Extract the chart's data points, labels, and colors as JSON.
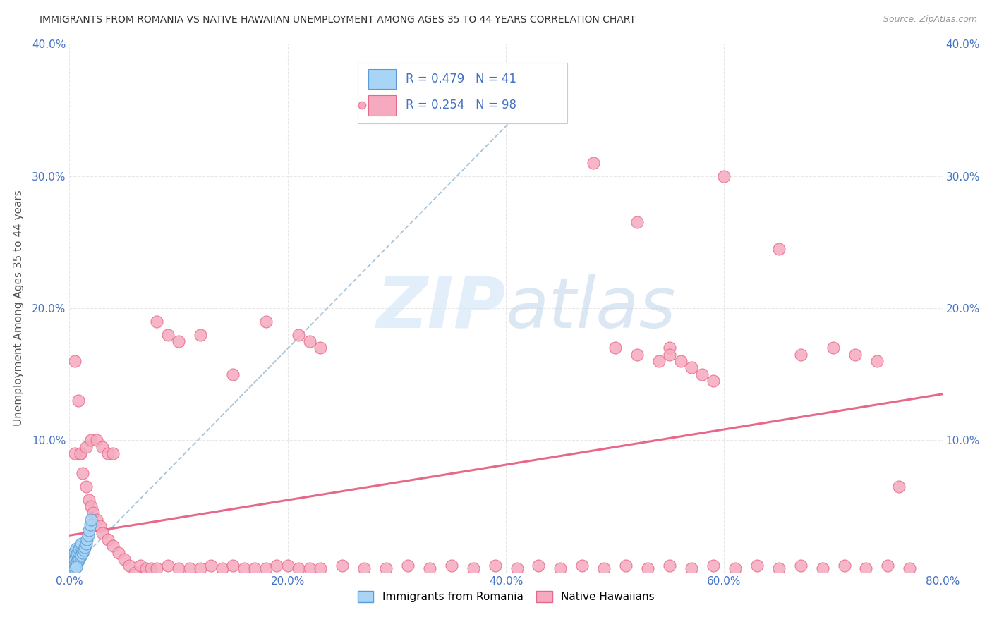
{
  "title": "IMMIGRANTS FROM ROMANIA VS NATIVE HAWAIIAN UNEMPLOYMENT AMONG AGES 35 TO 44 YEARS CORRELATION CHART",
  "source": "Source: ZipAtlas.com",
  "ylabel": "Unemployment Among Ages 35 to 44 years",
  "xlim": [
    0.0,
    0.8
  ],
  "ylim": [
    0.0,
    0.4
  ],
  "xticks": [
    0.0,
    0.2,
    0.4,
    0.6,
    0.8
  ],
  "yticks": [
    0.0,
    0.1,
    0.2,
    0.3,
    0.4
  ],
  "xtick_labels": [
    "0.0%",
    "20.0%",
    "40.0%",
    "60.0%",
    "80.0%"
  ],
  "ytick_labels": [
    "",
    "10.0%",
    "20.0%",
    "30.0%",
    "40.0%"
  ],
  "right_ytick_labels": [
    "",
    "10.0%",
    "20.0%",
    "30.0%",
    "40.0%"
  ],
  "legend_R1": "0.479",
  "legend_N1": "41",
  "legend_R2": "0.254",
  "legend_N2": "98",
  "series1_face": "#A8D4F5",
  "series1_edge": "#5B9BD5",
  "series2_face": "#F5AABF",
  "series2_edge": "#E8688A",
  "trend1_color": "#9BBDD6",
  "trend2_color": "#E8688A",
  "tick_color": "#4472C4",
  "watermark_color": "#D0E4F5",
  "background_color": "#FFFFFF",
  "grid_color": "#E8E8E8",
  "ylabel_color": "#555555",
  "title_color": "#333333",
  "source_color": "#999999",
  "legend_edge_color": "#CCCCCC",
  "series1_x": [
    0.001,
    0.001,
    0.002,
    0.002,
    0.002,
    0.003,
    0.003,
    0.003,
    0.004,
    0.004,
    0.004,
    0.005,
    0.005,
    0.005,
    0.006,
    0.006,
    0.006,
    0.007,
    0.007,
    0.008,
    0.008,
    0.009,
    0.009,
    0.01,
    0.01,
    0.011,
    0.011,
    0.012,
    0.013,
    0.014,
    0.015,
    0.016,
    0.017,
    0.018,
    0.019,
    0.02,
    0.002,
    0.003,
    0.004,
    0.005,
    0.006
  ],
  "series1_y": [
    0.005,
    0.008,
    0.003,
    0.007,
    0.01,
    0.004,
    0.008,
    0.012,
    0.005,
    0.009,
    0.015,
    0.006,
    0.01,
    0.016,
    0.007,
    0.012,
    0.018,
    0.008,
    0.014,
    0.009,
    0.016,
    0.01,
    0.018,
    0.012,
    0.02,
    0.013,
    0.022,
    0.015,
    0.017,
    0.019,
    0.022,
    0.025,
    0.028,
    0.032,
    0.036,
    0.04,
    0.0,
    0.001,
    0.002,
    0.003,
    0.004
  ],
  "series2_x": [
    0.005,
    0.008,
    0.01,
    0.012,
    0.015,
    0.018,
    0.02,
    0.022,
    0.025,
    0.028,
    0.03,
    0.035,
    0.04,
    0.045,
    0.05,
    0.055,
    0.06,
    0.065,
    0.07,
    0.075,
    0.08,
    0.09,
    0.1,
    0.11,
    0.12,
    0.13,
    0.14,
    0.15,
    0.16,
    0.17,
    0.18,
    0.19,
    0.2,
    0.21,
    0.22,
    0.23,
    0.25,
    0.27,
    0.29,
    0.31,
    0.33,
    0.35,
    0.37,
    0.39,
    0.41,
    0.43,
    0.45,
    0.47,
    0.49,
    0.51,
    0.53,
    0.55,
    0.57,
    0.59,
    0.61,
    0.63,
    0.65,
    0.67,
    0.69,
    0.71,
    0.73,
    0.75,
    0.77,
    0.005,
    0.01,
    0.015,
    0.02,
    0.025,
    0.03,
    0.035,
    0.04,
    0.08,
    0.09,
    0.1,
    0.12,
    0.15,
    0.18,
    0.48,
    0.52,
    0.55,
    0.6,
    0.65,
    0.67,
    0.7,
    0.72,
    0.74,
    0.76,
    0.21,
    0.22,
    0.23,
    0.5,
    0.52,
    0.54,
    0.55,
    0.56,
    0.57,
    0.58,
    0.59
  ],
  "series2_y": [
    0.16,
    0.13,
    0.09,
    0.075,
    0.065,
    0.055,
    0.05,
    0.045,
    0.04,
    0.035,
    0.03,
    0.025,
    0.02,
    0.015,
    0.01,
    0.005,
    0.0,
    0.005,
    0.003,
    0.003,
    0.003,
    0.005,
    0.003,
    0.003,
    0.003,
    0.005,
    0.003,
    0.005,
    0.003,
    0.003,
    0.003,
    0.005,
    0.005,
    0.003,
    0.003,
    0.003,
    0.005,
    0.003,
    0.003,
    0.005,
    0.003,
    0.005,
    0.003,
    0.005,
    0.003,
    0.005,
    0.003,
    0.005,
    0.003,
    0.005,
    0.003,
    0.005,
    0.003,
    0.005,
    0.003,
    0.005,
    0.003,
    0.005,
    0.003,
    0.005,
    0.003,
    0.005,
    0.003,
    0.09,
    0.09,
    0.095,
    0.1,
    0.1,
    0.095,
    0.09,
    0.09,
    0.19,
    0.18,
    0.175,
    0.18,
    0.15,
    0.19,
    0.31,
    0.265,
    0.17,
    0.3,
    0.245,
    0.165,
    0.17,
    0.165,
    0.16,
    0.065,
    0.18,
    0.175,
    0.17,
    0.17,
    0.165,
    0.16,
    0.165,
    0.16,
    0.155,
    0.15,
    0.145
  ],
  "trend2_x0": 0.0,
  "trend2_y0": 0.028,
  "trend2_x1": 0.8,
  "trend2_y1": 0.135,
  "trend1_x0": 0.0,
  "trend1_y0": 0.001,
  "trend1_x1": 0.45,
  "trend1_y1": 0.38
}
